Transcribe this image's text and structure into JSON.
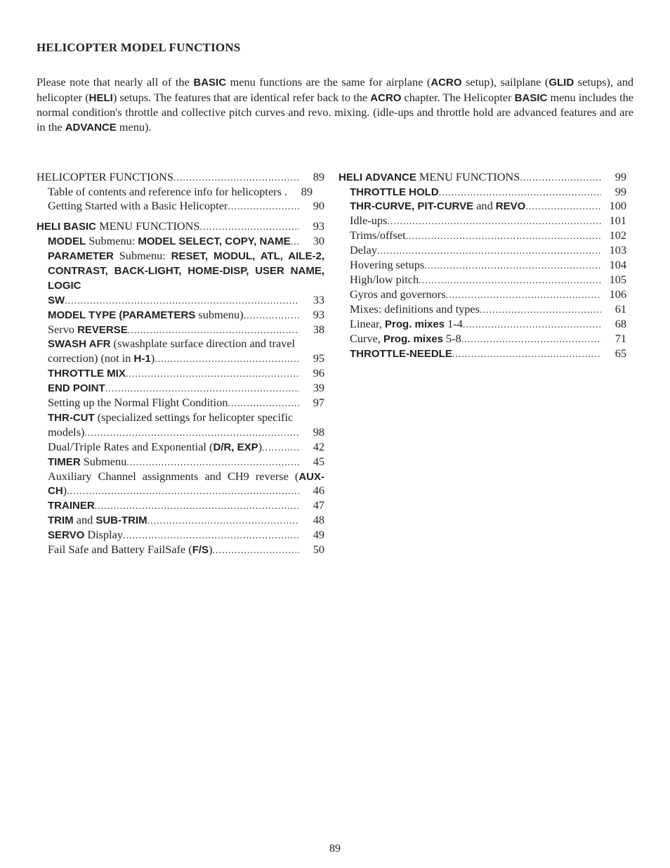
{
  "title": "HELICOPTER MODEL FUNCTIONS",
  "intro_parts": [
    "Please note that nearly all of the ",
    "BASIC",
    " menu functions are the same for airplane (",
    "ACRO",
    " setup), sailplane (",
    "GLID",
    " setups), and helicopter (",
    "HELI",
    ") setups. The features that are identical refer back to the ",
    "ACRO",
    " chapter. The Helicopter ",
    "BASIC",
    " menu includes the normal condition's throttle and collective pitch curves and revo. mixing. (idle-ups and throttle hold are advanced features and are in the ",
    "ADVANCE",
    " menu)."
  ],
  "col1": {
    "r1": {
      "label": "HELICOPTER FUNCTIONS",
      "pg": "89"
    },
    "r2": {
      "label": "Table of contents and reference info for helicopters .",
      "pg": "89"
    },
    "r3": {
      "label": "Getting Started with a Basic Helicopter ",
      "pg": "90"
    },
    "r4": {
      "pre": "HELI BASIC",
      "label": " MENU FUNCTIONS ",
      "pg": "93"
    },
    "r5": {
      "pre": "MODEL",
      "mid": " Submenu: ",
      "post": "MODEL SELECT, COPY, NAME ",
      "pg": "30"
    },
    "r6a": "PARAMETER Submenu: RESET, MODUL, ATL, AILE-2, CONTRAST, BACK-LIGHT, HOME-DISP, USER NAME, LOGIC",
    "r6a_pre": "PARAMETER",
    "r6a_mid": " Submenu: ",
    "r6a_post": "RESET, MODUL, ATL, AILE-2,",
    "r6b": "CONTRAST, BACK-LIGHT, HOME-DISP, USER NAME, LOGIC",
    "r6c_pre": "SW",
    "r6c_pg": "33",
    "r7": {
      "pre": "MODEL TYPE (PARAMETERS",
      "post": " submenu) ",
      "pg": "93"
    },
    "r8": {
      "label": "Servo ",
      "post": "REVERSE ",
      "pg": "38"
    },
    "r9a_pre": "SWASH AFR",
    "r9a_mid": " (swashplate surface direction and travel",
    "r9b_pre": "correction) (not in ",
    "r9b_post": "H-1",
    "r9b_end": ") ",
    "r9b_pg": "95",
    "r10": {
      "pre": "THROTTLE MIX ",
      "pg": "96"
    },
    "r11": {
      "pre": "END POINT ",
      "pg": "39"
    },
    "r12": {
      "label": "Setting up the Normal Flight Condition ",
      "pg": "97"
    },
    "r13a_pre": "THR-CUT",
    "r13a_mid": " (specialized settings for helicopter specific",
    "r13b": {
      "label": "models) ",
      "pg": "98"
    },
    "r14": {
      "label": "Dual/Triple Rates and Exponential (",
      "post": "D/R, EXP",
      "end": ") ",
      "pg": "42"
    },
    "r15": {
      "pre": "TIMER",
      "label": " Submenu",
      "pg": "45"
    },
    "r16a": "Auxiliary Channel assignments and CH9 reverse (",
    "r16a_post": "AUX-",
    "r16b_pre": "CH",
    "r16b_end": ") ",
    "r16b_pg": "46",
    "r17": {
      "pre": "TRAINER ",
      "pg": "47"
    },
    "r18": {
      "pre": "TRIM",
      "mid": " and ",
      "post": "SUB-TRIM ",
      "pg": "48"
    },
    "r19": {
      "pre": "SERVO",
      "label": " Display ",
      "pg": "49"
    },
    "r20": {
      "label": "Fail Safe and Battery FailSafe (",
      "post": "F/S",
      "end": ") ",
      "pg": "50"
    }
  },
  "col2": {
    "r1": {
      "pre": "HELI ADVANCE",
      "label": " MENU FUNCTIONS ",
      "pg": "99"
    },
    "r2": {
      "pre": "THROTTLE HOLD ",
      "pg": "99"
    },
    "r3": {
      "pre": "THR-CURVE, PIT-CURVE",
      "mid": " and ",
      "post": "REVO ",
      "pg": "100"
    },
    "r4": {
      "label": "Idle-ups ",
      "pg": "101"
    },
    "r5": {
      "label": "Trims/offset ",
      "pg": "102"
    },
    "r6": {
      "label": "Delay ",
      "pg": "103"
    },
    "r7": {
      "label": "Hovering setups ",
      "pg": "104"
    },
    "r8": {
      "label": "High/low pitch ",
      "pg": "105"
    },
    "r9": {
      "label": "Gyros and governors ",
      "pg": "106"
    },
    "r10": {
      "label": "Mixes: definitions and types ",
      "pg": "61"
    },
    "r11": {
      "label": "Linear, ",
      "post": "Prog. mixes",
      "end": " 1-4 ",
      "pg": "68"
    },
    "r12": {
      "label": "Curve, ",
      "post": "Prog. mixes",
      "end": " 5-8 ",
      "pg": "71"
    },
    "r13": {
      "pre": "THROTTLE-NEEDLE",
      "pg": "65"
    }
  },
  "page_number": "89"
}
